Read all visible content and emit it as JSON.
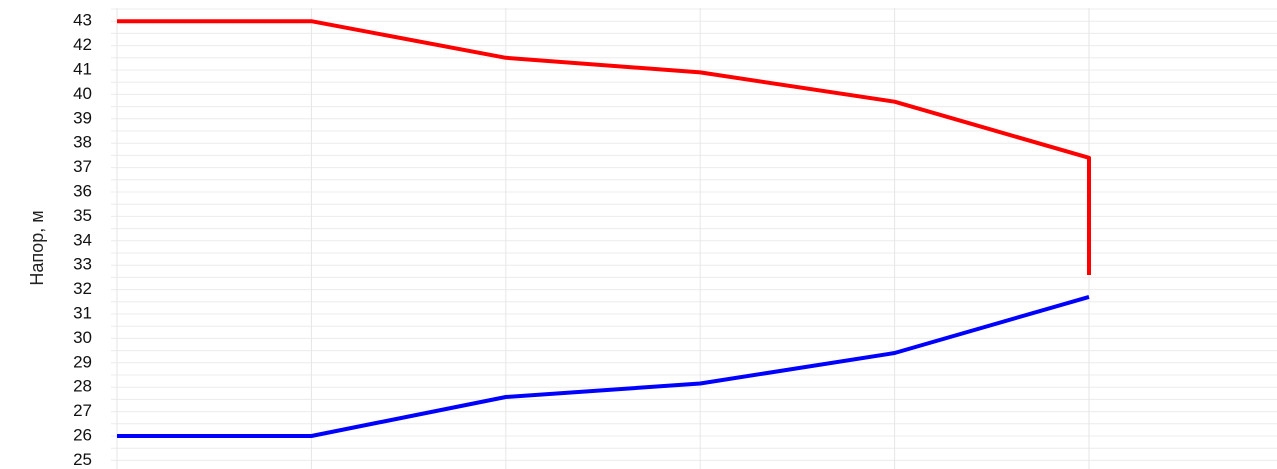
{
  "chart_data": {
    "type": "line",
    "title": "",
    "xlabel": "",
    "ylabel": "Напор, м",
    "x": [
      0,
      1,
      2,
      3,
      4,
      5
    ],
    "xlim": [
      0,
      5.93
    ],
    "ylim": [
      25,
      43.5
    ],
    "yticks": [
      25,
      26,
      27,
      28,
      29,
      30,
      31,
      32,
      33,
      34,
      35,
      36,
      37,
      38,
      39,
      40,
      41,
      42,
      43
    ],
    "grid": true,
    "series": [
      {
        "color": "#ff0000",
        "points": [
          [
            0,
            43
          ],
          [
            1,
            43
          ],
          [
            2,
            41.5
          ],
          [
            3,
            40.9
          ],
          [
            4,
            39.7
          ],
          [
            5,
            37.4
          ],
          [
            5,
            32.6
          ]
        ]
      },
      {
        "color": "#0000ff",
        "points": [
          [
            0,
            26
          ],
          [
            1,
            26
          ],
          [
            2,
            27.6
          ],
          [
            3,
            28.15
          ],
          [
            4,
            29.4
          ],
          [
            5,
            31.7
          ]
        ]
      }
    ]
  }
}
